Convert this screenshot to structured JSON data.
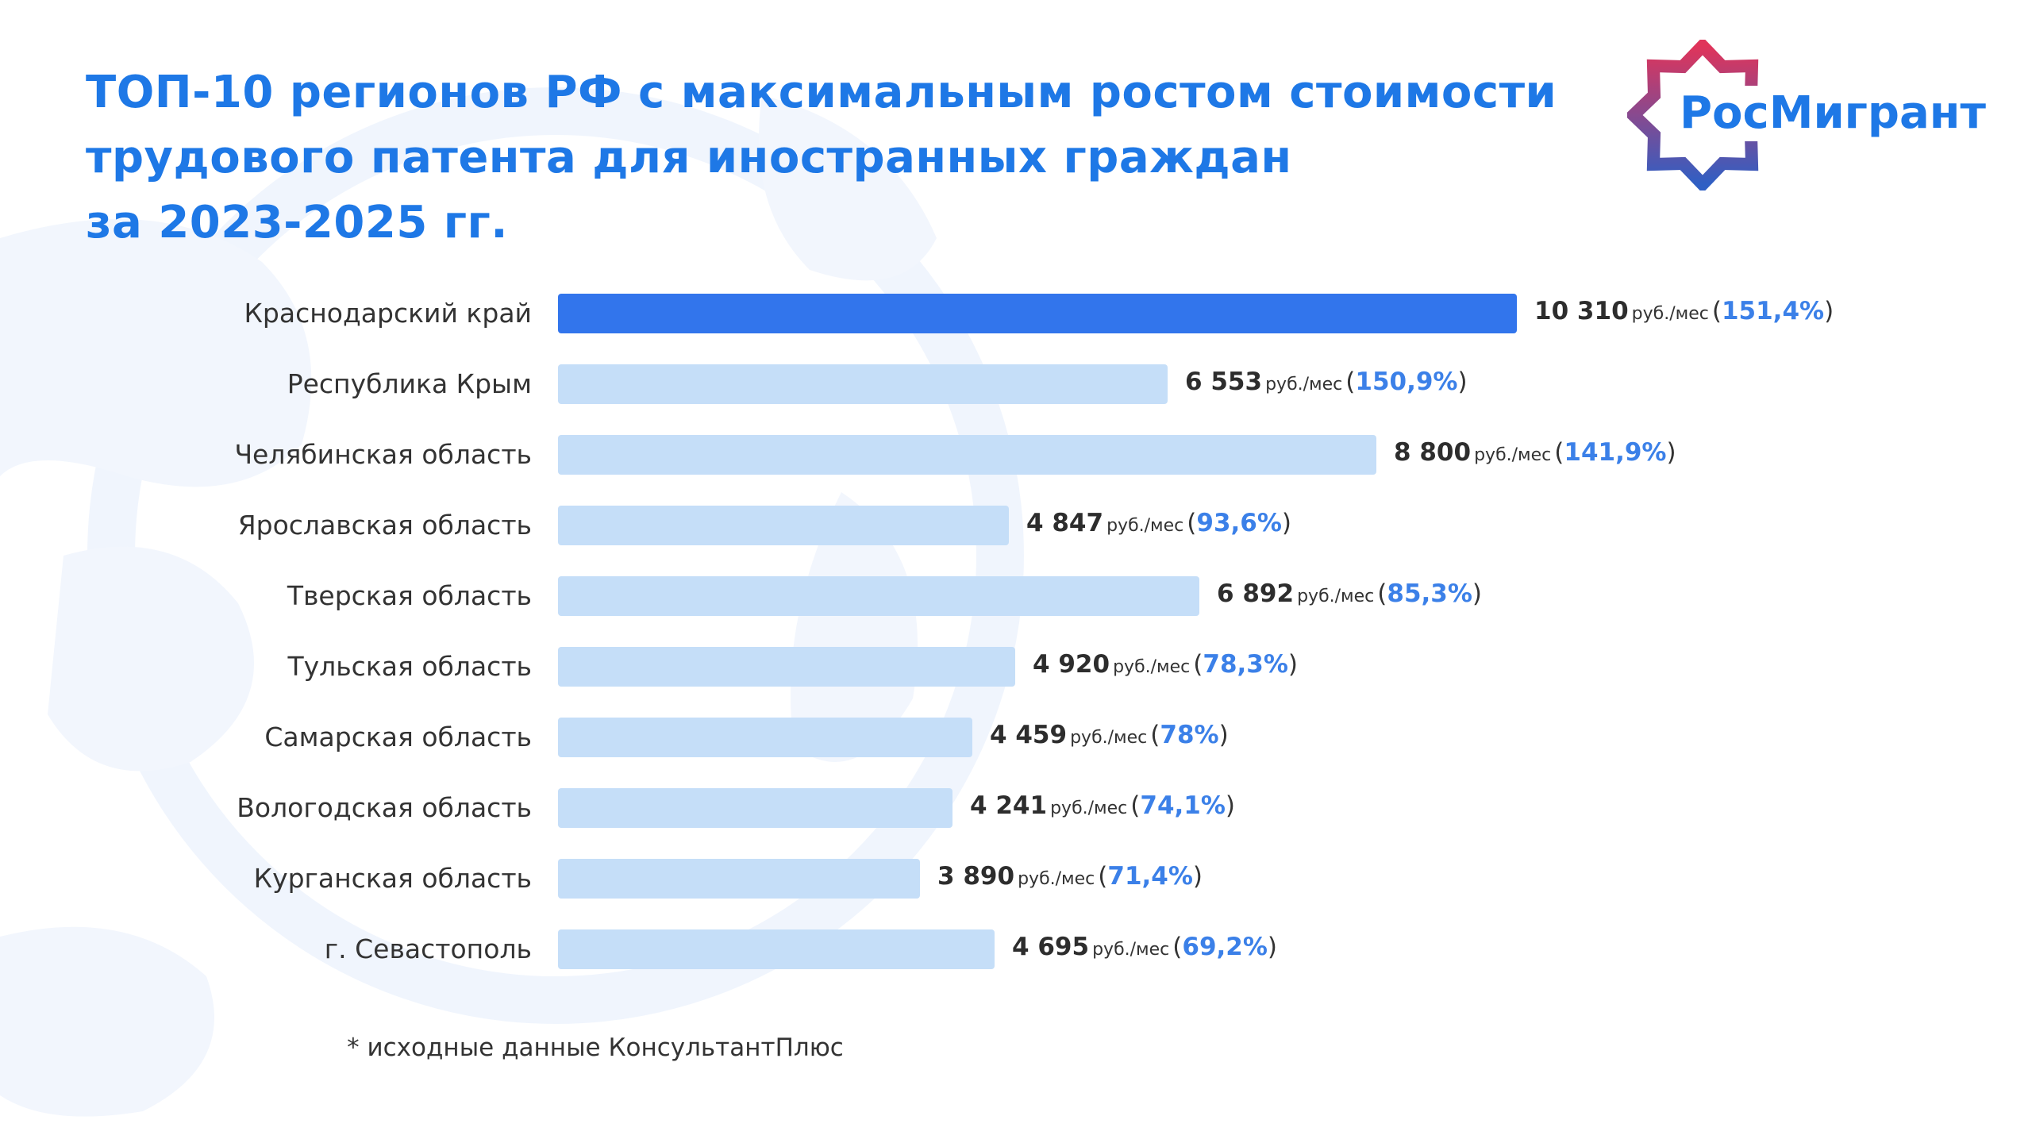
{
  "title": {
    "line1": "ТОП-10 регионов РФ с максимальным ростом стоимости",
    "line2": "трудового патента для иностранных граждан",
    "line3": "за 2023-2025 гг."
  },
  "logo": {
    "text": "РосМигрант"
  },
  "colors": {
    "accent": "#1e78e6",
    "bar_highlight": "#3275ec",
    "bar_default": "#c5def8",
    "percent_text": "#3b80e8",
    "logo_gradient_top": "#e0345a",
    "logo_gradient_bottom": "#2f5fc4"
  },
  "chart_data": {
    "type": "bar",
    "orientation": "horizontal",
    "categories": [
      "Краснодарский край",
      "Республика Крым",
      "Челябинская область",
      "Ярославская область",
      "Тверская область",
      "Тульская область",
      "Самарская область",
      "Вологодская область",
      "Курганская область",
      "г. Севастополь"
    ],
    "values": [
      10310,
      6553,
      8800,
      4847,
      6892,
      4920,
      4459,
      4241,
      3890,
      4695
    ],
    "value_labels": [
      "10 310",
      "6 553",
      "8 800",
      "4 847",
      "6 892",
      "4 920",
      "4 459",
      "4 241",
      "3 890",
      "4 695"
    ],
    "unit": "руб./мес",
    "growth_labels": [
      "151,4%",
      "150,9%",
      "141,9%",
      "93,6%",
      "85,3%",
      "78,3%",
      "78%",
      "74,1%",
      "71,4%",
      "69,2%"
    ],
    "highlight_index": 0,
    "xlim": [
      0,
      10310
    ],
    "grid": false,
    "legend": "none"
  },
  "footnote": "* исходные данные КонсультантПлюс"
}
